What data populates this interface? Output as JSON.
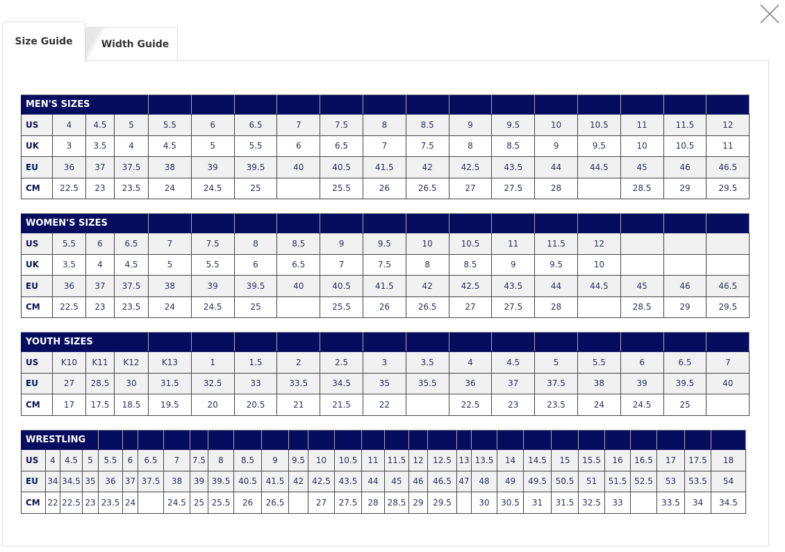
{
  "tabs": [
    {
      "label": "Size Guide",
      "active": true
    },
    {
      "label": "Width Guide",
      "active": false
    }
  ],
  "close_icon": "close-x-icon",
  "colors": {
    "header": "#070d5e",
    "row_alt": "#f1f1f1"
  },
  "tables": [
    {
      "title": "MEN'S SIZES",
      "rows": [
        {
          "label": "US",
          "cells": [
            "4",
            "4.5",
            "5",
            "5.5",
            "6",
            "6.5",
            "7",
            "7.5",
            "8",
            "8.5",
            "9",
            "9.5",
            "10",
            "10.5",
            "11",
            "11.5",
            "12"
          ]
        },
        {
          "label": "UK",
          "cells": [
            "3",
            "3.5",
            "4",
            "4.5",
            "5",
            "5.5",
            "6",
            "6.5",
            "7",
            "7.5",
            "8",
            "8.5",
            "9",
            "9.5",
            "10",
            "10.5",
            "11"
          ]
        },
        {
          "label": "EU",
          "cells": [
            "36",
            "37",
            "37.5",
            "38",
            "39",
            "39.5",
            "40",
            "40.5",
            "41.5",
            "42",
            "42.5",
            "43.5",
            "44",
            "44.5",
            "45",
            "46",
            "46.5"
          ]
        },
        {
          "label": "CM",
          "cells": [
            "22.5",
            "23",
            "23.5",
            "24",
            "24.5",
            "25",
            "",
            "25.5",
            "26",
            "26.5",
            "27",
            "27.5",
            "28",
            "",
            "28.5",
            "29",
            "29.5"
          ]
        }
      ]
    },
    {
      "title": "WOMEN'S SIZES",
      "rows": [
        {
          "label": "US",
          "cells": [
            "5.5",
            "6",
            "6.5",
            "7",
            "7.5",
            "8",
            "8.5",
            "9",
            "9.5",
            "10",
            "10.5",
            "11",
            "11.5",
            "12",
            "",
            "",
            ""
          ]
        },
        {
          "label": "UK",
          "cells": [
            "3.5",
            "4",
            "4.5",
            "5",
            "5.5",
            "6",
            "6.5",
            "7",
            "7.5",
            "8",
            "8.5",
            "9",
            "9.5",
            "10",
            "",
            "",
            ""
          ]
        },
        {
          "label": "EU",
          "cells": [
            "36",
            "37",
            "37.5",
            "38",
            "39",
            "39.5",
            "40",
            "40.5",
            "41.5",
            "42",
            "42.5",
            "43.5",
            "44",
            "44.5",
            "45",
            "46",
            "46.5"
          ]
        },
        {
          "label": "CM",
          "cells": [
            "22.5",
            "23",
            "23.5",
            "24",
            "24.5",
            "25",
            "",
            "25.5",
            "26",
            "26.5",
            "27",
            "27.5",
            "28",
            "",
            "28.5",
            "29",
            "29.5"
          ]
        }
      ]
    },
    {
      "title": "YOUTH SIZES",
      "rows": [
        {
          "label": "US",
          "cells": [
            "K10",
            "K11",
            "K12",
            "K13",
            "1",
            "1.5",
            "2",
            "2.5",
            "3",
            "3.5",
            "4",
            "4.5",
            "5",
            "5.5",
            "6",
            "6.5",
            "7"
          ]
        },
        {
          "label": "EU",
          "cells": [
            "27",
            "28.5",
            "30",
            "31.5",
            "32.5",
            "33",
            "33.5",
            "34.5",
            "35",
            "35.5",
            "36",
            "37",
            "37.5",
            "38",
            "39",
            "39.5",
            "40"
          ]
        },
        {
          "label": "CM",
          "cells": [
            "17",
            "17.5",
            "18.5",
            "19.5",
            "20",
            "20.5",
            "21",
            "21.5",
            "22",
            "",
            "22.5",
            "23",
            "23.5",
            "24",
            "24.5",
            "25",
            ""
          ]
        }
      ]
    },
    {
      "title": "WRESTLING",
      "rows": [
        {
          "label": "US",
          "cells": [
            "4",
            "4.5",
            "5",
            "5.5",
            "6",
            "6.5",
            "7",
            "7.5",
            "8",
            "8.5",
            "9",
            "9.5",
            "10",
            "10.5",
            "11",
            "11.5",
            "12",
            "12.5",
            "13",
            "13.5",
            "14",
            "14.5",
            "15",
            "15.5",
            "16",
            "16.5",
            "17",
            "17.5",
            "18"
          ]
        },
        {
          "label": "EU",
          "cells": [
            "34",
            "34.5",
            "35",
            "36",
            "37",
            "37.5",
            "38",
            "39",
            "39.5",
            "40.5",
            "41.5",
            "42",
            "42.5",
            "43.5",
            "44",
            "45",
            "46",
            "46.5",
            "47",
            "48",
            "49",
            "49.5",
            "50.5",
            "51",
            "51.5",
            "52.5",
            "53",
            "53.5",
            "54"
          ]
        },
        {
          "label": "CM",
          "cells": [
            "22",
            "22.5",
            "23",
            "23.5",
            "24",
            "",
            "24.5",
            "25",
            "25.5",
            "26",
            "26.5",
            "",
            "27",
            "27.5",
            "28",
            "28.5",
            "29",
            "29.5",
            "",
            "30",
            "30.5",
            "31",
            "31.5",
            "32.5",
            "33",
            "",
            "33.5",
            "34",
            "34.5"
          ]
        }
      ]
    }
  ]
}
